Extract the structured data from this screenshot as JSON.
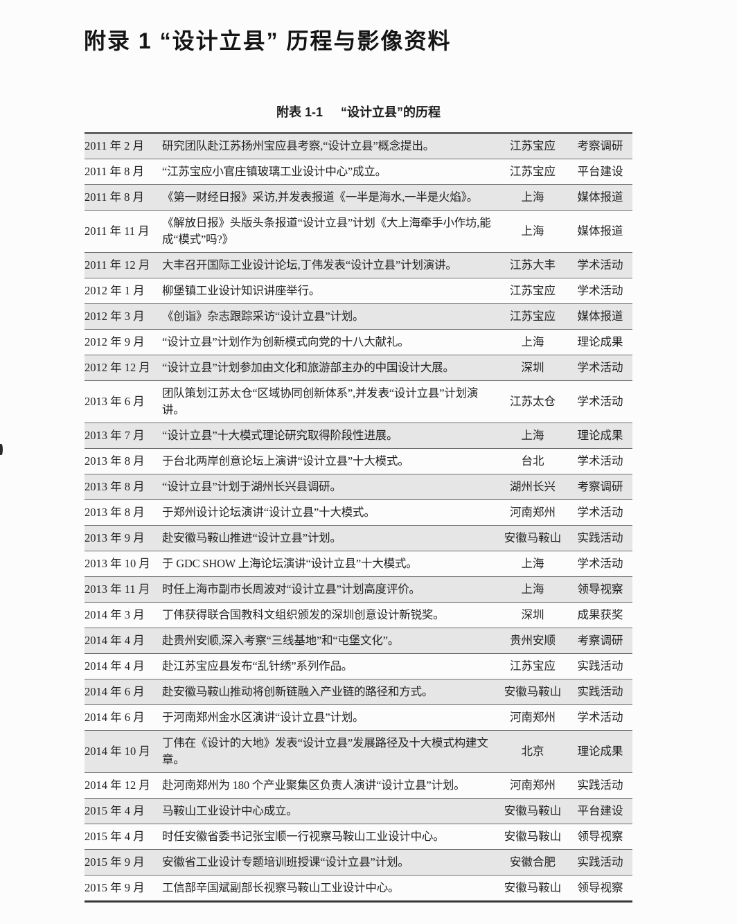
{
  "page": {
    "title": "附录 1 “设计立县” 历程与影像资料",
    "caption_label": "附表 1-1",
    "caption_title": "“设计立县”的历程"
  },
  "colors": {
    "row_shade": "#e6e6e6",
    "rule_line": "#6e6e6e",
    "frame_line": "#383838",
    "text": "#222222",
    "page_background": "#fcfcfc"
  },
  "table": {
    "rows": [
      {
        "date": "2011 年 2 月",
        "desc": "研究团队赴江苏扬州宝应县考察,“设计立县”概念提出。",
        "location": "江苏宝应",
        "category": "考察调研"
      },
      {
        "date": "2011 年 8 月",
        "desc": "“江苏宝应小官庄镇玻璃工业设计中心”成立。",
        "location": "江苏宝应",
        "category": "平台建设"
      },
      {
        "date": "2011 年 8 月",
        "desc": "《第一财经日报》采访,并发表报道《一半是海水,一半是火焰》。",
        "location": "上海",
        "category": "媒体报道"
      },
      {
        "date": "2011 年 11 月",
        "desc": "《解放日报》头版头条报道“设计立县”计划《大上海牵手小作坊,能成“模式”吗?》",
        "location": "上海",
        "category": "媒体报道"
      },
      {
        "date": "2011 年 12 月",
        "desc": "大丰召开国际工业设计论坛,丁伟发表“设计立县”计划演讲。",
        "location": "江苏大丰",
        "category": "学术活动"
      },
      {
        "date": "2012 年 1 月",
        "desc": "柳堡镇工业设计知识讲座举行。",
        "location": "江苏宝应",
        "category": "学术活动"
      },
      {
        "date": "2012 年 3 月",
        "desc": "《创诣》杂志跟踪采访“设计立县”计划。",
        "location": "江苏宝应",
        "category": "媒体报道"
      },
      {
        "date": "2012 年 9 月",
        "desc": "“设计立县”计划作为创新模式向党的十八大献礼。",
        "location": "上海",
        "category": "理论成果"
      },
      {
        "date": "2012 年 12 月",
        "desc": "“设计立县”计划参加由文化和旅游部主办的中国设计大展。",
        "location": "深圳",
        "category": "学术活动"
      },
      {
        "date": "2013 年 6 月",
        "desc": "团队策划江苏太仓“区域协同创新体系”,并发表“设计立县”计划演讲。",
        "location": "江苏太仓",
        "category": "学术活动"
      },
      {
        "date": "2013 年 7 月",
        "desc": "“设计立县”十大模式理论研究取得阶段性进展。",
        "location": "上海",
        "category": "理论成果"
      },
      {
        "date": "2013 年 8 月",
        "desc": "于台北两岸创意论坛上演讲“设计立县”十大模式。",
        "location": "台北",
        "category": "学术活动"
      },
      {
        "date": "2013 年 8 月",
        "desc": "“设计立县”计划于湖州长兴县调研。",
        "location": "湖州长兴",
        "category": "考察调研"
      },
      {
        "date": "2013 年 8 月",
        "desc": "于郑州设计论坛演讲“设计立县”十大模式。",
        "location": "河南郑州",
        "category": "学术活动"
      },
      {
        "date": "2013 年 9 月",
        "desc": "赴安徽马鞍山推进“设计立县”计划。",
        "location": "安徽马鞍山",
        "category": "实践活动"
      },
      {
        "date": "2013 年 10 月",
        "desc": "于 GDC SHOW 上海论坛演讲“设计立县”十大模式。",
        "location": "上海",
        "category": "学术活动"
      },
      {
        "date": "2013 年 11 月",
        "desc": "时任上海市副市长周波对“设计立县”计划高度评价。",
        "location": "上海",
        "category": "领导视察"
      },
      {
        "date": "2014 年 3 月",
        "desc": "丁伟获得联合国教科文组织颁发的深圳创意设计新锐奖。",
        "location": "深圳",
        "category": "成果获奖"
      },
      {
        "date": "2014 年 4 月",
        "desc": "赴贵州安顺,深入考察“三线基地”和“屯堡文化”。",
        "location": "贵州安顺",
        "category": "考察调研"
      },
      {
        "date": "2014 年 4 月",
        "desc": "赴江苏宝应县发布“乱针绣”系列作品。",
        "location": "江苏宝应",
        "category": "实践活动"
      },
      {
        "date": "2014 年 6 月",
        "desc": "赴安徽马鞍山推动将创新链融入产业链的路径和方式。",
        "location": "安徽马鞍山",
        "category": "实践活动"
      },
      {
        "date": "2014 年 6 月",
        "desc": "于河南郑州金水区演讲“设计立县”计划。",
        "location": "河南郑州",
        "category": "学术活动"
      },
      {
        "date": "2014 年 10 月",
        "desc": "丁伟在《设计的大地》发表“设计立县”发展路径及十大模式构建文章。",
        "location": "北京",
        "category": "理论成果"
      },
      {
        "date": "2014 年 12 月",
        "desc": "赴河南郑州为 180 个产业聚集区负责人演讲“设计立县”计划。",
        "location": "河南郑州",
        "category": "实践活动"
      },
      {
        "date": "2015 年 4 月",
        "desc": "马鞍山工业设计中心成立。",
        "location": "安徽马鞍山",
        "category": "平台建设"
      },
      {
        "date": "2015 年 4 月",
        "desc": "时任安徽省委书记张宝顺一行视察马鞍山工业设计中心。",
        "location": "安徽马鞍山",
        "category": "领导视察"
      },
      {
        "date": "2015 年 9 月",
        "desc": "安徽省工业设计专题培训班授课“设计立县”计划。",
        "location": "安徽合肥",
        "category": "实践活动"
      },
      {
        "date": "2015 年 9 月",
        "desc": "工信部辛国斌副部长视察马鞍山工业设计中心。",
        "location": "安徽马鞍山",
        "category": "领导视察"
      }
    ]
  }
}
